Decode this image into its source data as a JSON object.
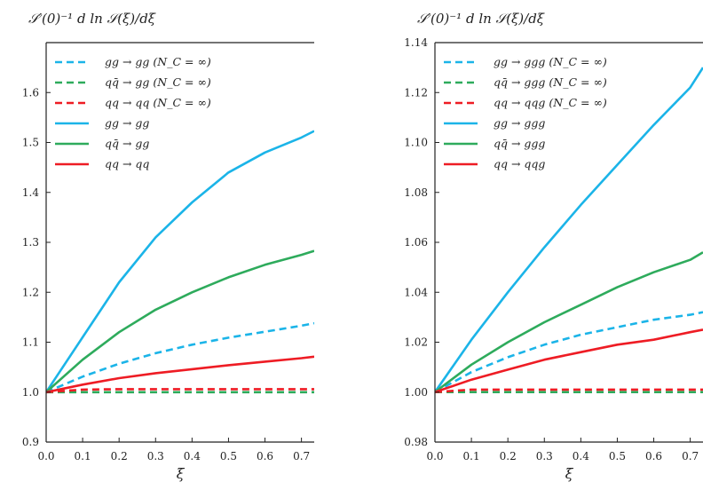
{
  "chart_data": [
    {
      "type": "line",
      "title": "",
      "ylabel": "𝒮′(0)⁻¹ d ln 𝒮(ξ)/dξ",
      "xlabel": "ξ",
      "xlim": [
        0.0,
        0.735
      ],
      "ylim": [
        0.9,
        1.7
      ],
      "xticks": [
        "0.0",
        "0.1",
        "0.2",
        "0.3",
        "0.4",
        "0.5",
        "0.6",
        "0.7"
      ],
      "yticks": [
        "0.9",
        "1.0",
        "1.1",
        "1.2",
        "1.3",
        "1.4",
        "1.5",
        "1.6"
      ],
      "grid": false,
      "legend_position": "top-left",
      "series": [
        {
          "name": "gg → gg (N_C = ∞)",
          "color": "#1bb4e8",
          "style": "dashed",
          "x": [
            0.0,
            0.1,
            0.2,
            0.3,
            0.4,
            0.5,
            0.6,
            0.7,
            0.735
          ],
          "y": [
            1.0,
            1.031,
            1.057,
            1.078,
            1.095,
            1.109,
            1.121,
            1.133,
            1.138
          ]
        },
        {
          "name": "qq̄ → gg (N_C = ∞)",
          "color": "#2eab5c",
          "style": "dashed",
          "x": [
            0.0,
            0.1,
            0.2,
            0.3,
            0.4,
            0.5,
            0.6,
            0.7,
            0.735
          ],
          "y": [
            1.0,
            1.0,
            1.0,
            1.0,
            1.0,
            1.0,
            1.0,
            1.0,
            1.0
          ]
        },
        {
          "name": "qq → qq (N_C = ∞)",
          "color": "#ee1c24",
          "style": "dashed",
          "x": [
            0.0,
            0.1,
            0.2,
            0.3,
            0.4,
            0.5,
            0.6,
            0.7,
            0.735
          ],
          "y": [
            1.0,
            1.005,
            1.006,
            1.006,
            1.006,
            1.006,
            1.006,
            1.006,
            1.006
          ]
        },
        {
          "name": "gg → gg",
          "color": "#1bb4e8",
          "style": "solid",
          "x": [
            0.0,
            0.1,
            0.2,
            0.3,
            0.4,
            0.5,
            0.6,
            0.7,
            0.735
          ],
          "y": [
            1.0,
            1.11,
            1.22,
            1.31,
            1.38,
            1.44,
            1.48,
            1.51,
            1.523
          ]
        },
        {
          "name": "qq̄ → gg",
          "color": "#2eab5c",
          "style": "solid",
          "x": [
            0.0,
            0.1,
            0.2,
            0.3,
            0.4,
            0.5,
            0.6,
            0.7,
            0.735
          ],
          "y": [
            1.0,
            1.065,
            1.12,
            1.165,
            1.2,
            1.23,
            1.255,
            1.275,
            1.283
          ]
        },
        {
          "name": "qq → qq",
          "color": "#ee1c24",
          "style": "solid",
          "x": [
            0.0,
            0.1,
            0.2,
            0.3,
            0.4,
            0.5,
            0.6,
            0.7,
            0.735
          ],
          "y": [
            1.0,
            1.015,
            1.028,
            1.038,
            1.046,
            1.054,
            1.061,
            1.068,
            1.071
          ]
        }
      ]
    },
    {
      "type": "line",
      "title": "",
      "ylabel": "𝒮′(0)⁻¹ d ln 𝒮(ξ)/dξ",
      "xlabel": "ξ",
      "xlim": [
        0.0,
        0.735
      ],
      "ylim": [
        0.98,
        1.14
      ],
      "xticks": [
        "0.0",
        "0.1",
        "0.2",
        "0.3",
        "0.4",
        "0.5",
        "0.6",
        "0.7"
      ],
      "yticks": [
        "0.98",
        "1.00",
        "1.02",
        "1.04",
        "1.06",
        "1.08",
        "1.10",
        "1.12",
        "1.14"
      ],
      "grid": false,
      "legend_position": "top-left",
      "series": [
        {
          "name": "gg → ggg (N_C = ∞)",
          "color": "#1bb4e8",
          "style": "dashed",
          "x": [
            0.0,
            0.1,
            0.2,
            0.3,
            0.4,
            0.5,
            0.6,
            0.7,
            0.735
          ],
          "y": [
            1.0,
            1.008,
            1.014,
            1.019,
            1.023,
            1.026,
            1.029,
            1.031,
            1.032
          ]
        },
        {
          "name": "qq̄ → ggg (N_C = ∞)",
          "color": "#2eab5c",
          "style": "dashed",
          "x": [
            0.0,
            0.1,
            0.2,
            0.3,
            0.4,
            0.5,
            0.6,
            0.7,
            0.735
          ],
          "y": [
            1.0,
            1.0,
            1.0,
            1.0,
            1.0,
            1.0,
            1.0,
            1.0,
            1.0
          ]
        },
        {
          "name": "qq → qqg (N_C = ∞)",
          "color": "#ee1c24",
          "style": "dashed",
          "x": [
            0.0,
            0.1,
            0.2,
            0.3,
            0.4,
            0.5,
            0.6,
            0.7,
            0.735
          ],
          "y": [
            1.0,
            1.001,
            1.001,
            1.001,
            1.001,
            1.001,
            1.001,
            1.001,
            1.001
          ]
        },
        {
          "name": "gg → ggg",
          "color": "#1bb4e8",
          "style": "solid",
          "x": [
            0.0,
            0.1,
            0.2,
            0.3,
            0.4,
            0.5,
            0.6,
            0.7,
            0.735
          ],
          "y": [
            1.0,
            1.021,
            1.04,
            1.058,
            1.075,
            1.091,
            1.107,
            1.122,
            1.13
          ]
        },
        {
          "name": "qq̄ → ggg",
          "color": "#2eab5c",
          "style": "solid",
          "x": [
            0.0,
            0.1,
            0.2,
            0.3,
            0.4,
            0.5,
            0.6,
            0.7,
            0.735
          ],
          "y": [
            1.0,
            1.011,
            1.02,
            1.028,
            1.035,
            1.042,
            1.048,
            1.053,
            1.056
          ]
        },
        {
          "name": "qq → qqg",
          "color": "#ee1c24",
          "style": "solid",
          "x": [
            0.0,
            0.1,
            0.2,
            0.3,
            0.4,
            0.5,
            0.6,
            0.7,
            0.735
          ],
          "y": [
            1.0,
            1.005,
            1.009,
            1.013,
            1.016,
            1.019,
            1.021,
            1.024,
            1.025
          ]
        }
      ]
    }
  ]
}
